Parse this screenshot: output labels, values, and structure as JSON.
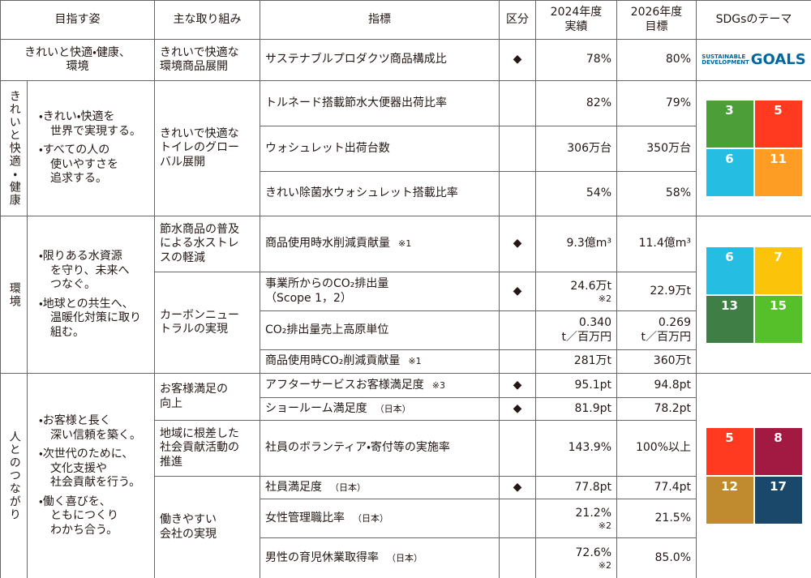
{
  "header": [
    "目指す姿",
    "主な取り組み",
    "指標",
    "区分",
    "2024年度\n実績",
    "2026年度\n目標",
    "SDGsのテーマ"
  ],
  "intro": {
    "vision": "きれいと快適・健康、\n環境",
    "initiative": "きれいで快適な\n環境商品展開",
    "indicator": "サステナブルプロダクツ商品構成比",
    "mark": "◆",
    "actual": "78%",
    "target": "80%",
    "sdg_logo": {
      "line1": "SUSTAINABLE",
      "line2": "DEVELOPMENT",
      "word": "GOALS"
    }
  },
  "groups": [
    {
      "label": "きれいと快適・健康",
      "bullets": [
        "・きれい・快適を\n世界で実現する。",
        "・すべての人の\n使いやすさを\n追求する。"
      ],
      "initiatives": [
        {
          "name": "きれいで快適な\nトイレのグロー\nバル展開",
          "rows": [
            {
              "indicator": "トルネード搭載節水大便器出荷比率",
              "actual": "82%",
              "target": "79%"
            },
            {
              "indicator": "ウォシュレット出荷台数",
              "actual": "306万台",
              "target": "350万台"
            },
            {
              "indicator": "きれい除菌水ウォシュレット搭載比率",
              "actual": "54%",
              "target": "58%"
            }
          ]
        }
      ],
      "sdgs": [
        {
          "number": "3",
          "color": "#4c9f38"
        },
        {
          "number": "5",
          "color": "#ff3a21"
        },
        {
          "number": "6",
          "color": "#26bde2"
        },
        {
          "number": "11",
          "color": "#fd9d24"
        }
      ]
    },
    {
      "label": "環境",
      "bullets": [
        "・限りある水資源\nを守り、未来へ\nつなぐ。",
        "・地球との共生へ、\n温暖化対策に取り\n組む。"
      ],
      "initiatives": [
        {
          "name": "節水商品の普及\nによる水ストレ\nスの軽減",
          "rows": [
            {
              "indicator": "商品使用時水削減貢献量",
              "indicator_note": "※1",
              "mark": "◆",
              "actual": "9.3億m³",
              "target": "11.4億m³"
            }
          ]
        },
        {
          "name": "カーボンニュー\nトラルの実現",
          "rows": [
            {
              "indicator": "事業所からのCO₂排出量\n（Scope 1，2）",
              "mark": "◆",
              "actual": "24.6万t",
              "actual_note": "※2",
              "target": "22.9万t"
            },
            {
              "indicator": "CO₂排出量売上高原単位",
              "actual": "0.340\nt／百万円",
              "target": "0.269\nt／百万円"
            },
            {
              "indicator": "商品使用時CO₂削減貢献量",
              "indicator_note": "※1",
              "actual": "281万t",
              "target": "360万t"
            }
          ]
        }
      ],
      "sdgs": [
        {
          "number": "6",
          "color": "#26bde2"
        },
        {
          "number": "7",
          "color": "#fcc30b"
        },
        {
          "number": "13",
          "color": "#3f7e44"
        },
        {
          "number": "15",
          "color": "#56c02b"
        }
      ]
    },
    {
      "label": "人とのつながり",
      "bullets": [
        "・お客様と長く\n深い信頼を築く。",
        "・次世代のために、\n文化支援や\n社会貢献を行う。",
        "・働く喜びを、\nともにつくり\nわかち合う。"
      ],
      "initiatives": [
        {
          "name": "お客様満足の\n向上",
          "rows": [
            {
              "indicator": "アフターサービスお客様満足度",
              "indicator_note": "※3",
              "mark": "◆",
              "actual": "95.1pt",
              "target": "94.8pt"
            },
            {
              "indicator": "ショールーム満足度",
              "indicator_note": "（日本）",
              "mark": "◆",
              "actual": "81.9pt",
              "target": "78.2pt"
            }
          ]
        },
        {
          "name": "地域に根差した\n社会貢献活動の\n推進",
          "rows": [
            {
              "indicator": "社員のボランティア・寄付等の実施率",
              "actual": "143.9%",
              "target": "100%以上"
            }
          ]
        },
        {
          "name": "働きやすい\n会社の実現",
          "rows": [
            {
              "indicator": "社員満足度",
              "indicator_note": "（日本）",
              "mark": "◆",
              "actual": "77.8pt",
              "target": "77.4pt"
            },
            {
              "indicator": "女性管理職比率",
              "indicator_note": "（日本）",
              "actual": "21.2%",
              "actual_note": "※2",
              "target": "21.5%"
            },
            {
              "indicator": "男性の育児休業取得率",
              "indicator_note": "（日本）",
              "actual": "72.6%",
              "actual_note": "※2",
              "target": "85.0%"
            }
          ]
        }
      ],
      "sdgs": [
        {
          "number": "5",
          "color": "#ff3a21"
        },
        {
          "number": "8",
          "color": "#a21942"
        },
        {
          "number": "12",
          "color": "#bf8b2e"
        },
        {
          "number": "17",
          "color": "#19486a"
        }
      ]
    }
  ]
}
